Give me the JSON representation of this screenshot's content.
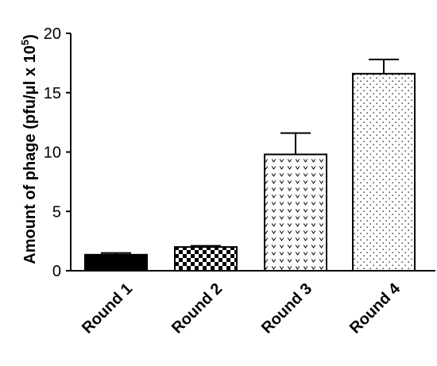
{
  "chart_data": {
    "type": "bar",
    "title": "",
    "xlabel": "",
    "ylabel": {
      "prefix": "Amount of phage (pfu/",
      "mu": "μ",
      "suffix": "l x 10",
      "exponent": "5",
      "close": ")"
    },
    "ylim": [
      0,
      20
    ],
    "yticks": [
      "0",
      "5",
      "10",
      "15",
      "20"
    ],
    "categories": [
      "Round 1",
      "Round 2",
      "Round 3",
      "Round 4"
    ],
    "values": [
      1.35,
      2.0,
      9.8,
      16.6
    ],
    "errors": [
      0.15,
      0.1,
      1.8,
      1.2
    ],
    "patterns": [
      "solid-black",
      "checkerboard",
      "chevron",
      "dots"
    ],
    "grid": false,
    "legend": "none"
  }
}
